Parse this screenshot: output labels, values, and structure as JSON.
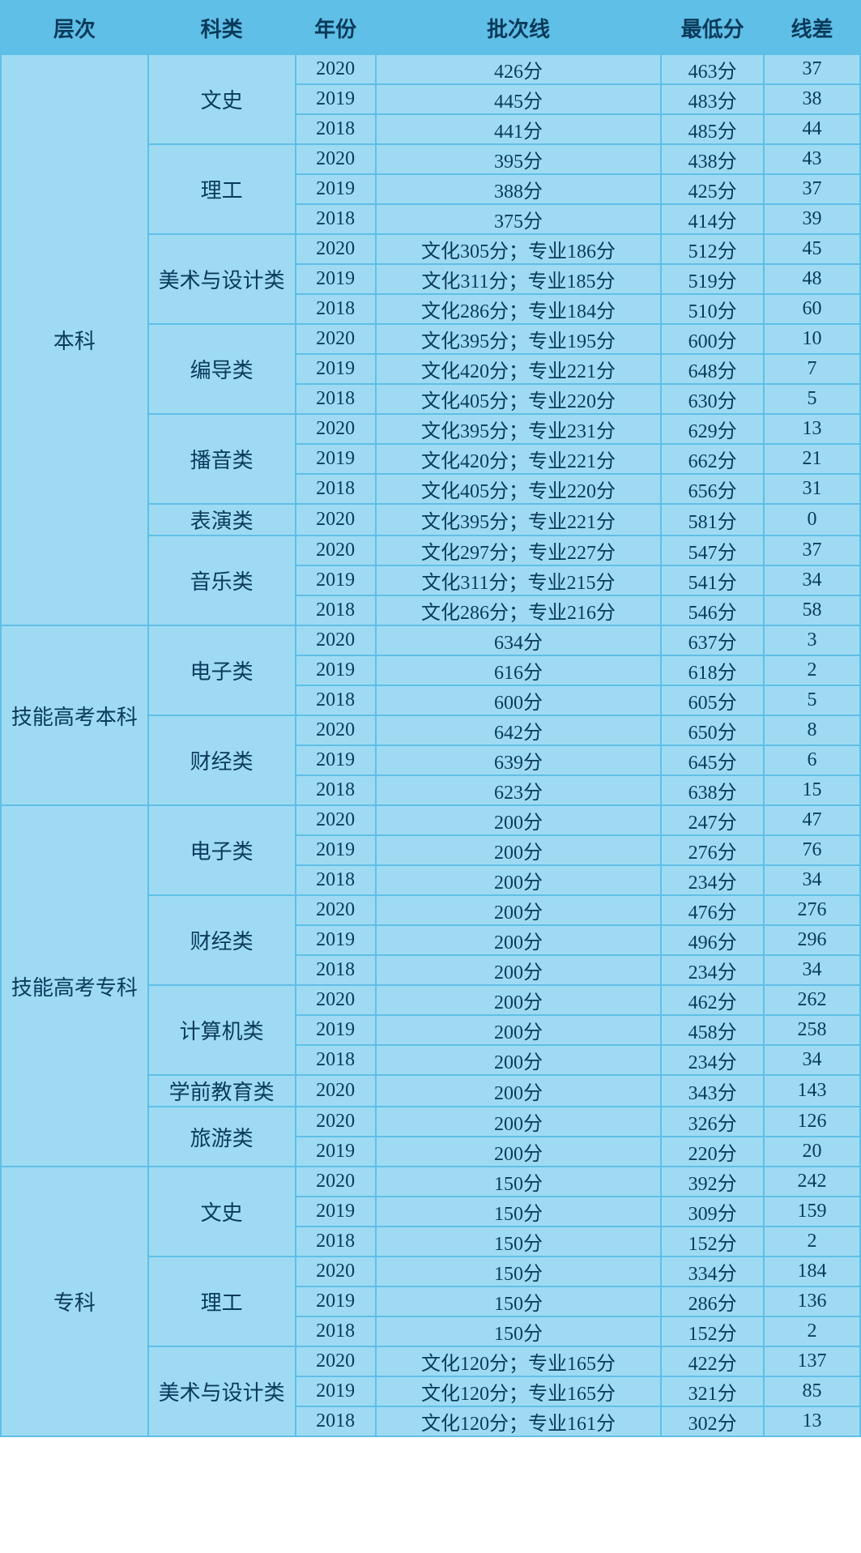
{
  "headers": {
    "level": "层次",
    "subject": "科类",
    "year": "年份",
    "batch": "批次线",
    "min": "最低分",
    "diff": "线差"
  },
  "colors": {
    "header_bg": "#5fbfe7",
    "cell_bg": "#9edbf3",
    "border": "#5fbfe7",
    "text": "#0a3a5a"
  },
  "levels": [
    {
      "name": "本科",
      "rowspan": 19,
      "subjects": [
        {
          "name": "文史",
          "rowspan": 3,
          "rows": [
            {
              "year": "2020",
              "batch": "426分",
              "min": "463分",
              "diff": "37"
            },
            {
              "year": "2019",
              "batch": "445分",
              "min": "483分",
              "diff": "38"
            },
            {
              "year": "2018",
              "batch": "441分",
              "min": "485分",
              "diff": "44"
            }
          ]
        },
        {
          "name": "理工",
          "rowspan": 3,
          "rows": [
            {
              "year": "2020",
              "batch": "395分",
              "min": "438分",
              "diff": "43"
            },
            {
              "year": "2019",
              "batch": "388分",
              "min": "425分",
              "diff": "37"
            },
            {
              "year": "2018",
              "batch": "375分",
              "min": "414分",
              "diff": "39"
            }
          ]
        },
        {
          "name": "美术与设计类",
          "rowspan": 3,
          "rows": [
            {
              "year": "2020",
              "batch": "文化305分；专业186分",
              "min": "512分",
              "diff": "45"
            },
            {
              "year": "2019",
              "batch": "文化311分；专业185分",
              "min": "519分",
              "diff": "48"
            },
            {
              "year": "2018",
              "batch": "文化286分；专业184分",
              "min": "510分",
              "diff": "60"
            }
          ]
        },
        {
          "name": "编导类",
          "rowspan": 3,
          "rows": [
            {
              "year": "2020",
              "batch": "文化395分；专业195分",
              "min": "600分",
              "diff": "10"
            },
            {
              "year": "2019",
              "batch": "文化420分；专业221分",
              "min": "648分",
              "diff": "7"
            },
            {
              "year": "2018",
              "batch": "文化405分；专业220分",
              "min": "630分",
              "diff": "5"
            }
          ]
        },
        {
          "name": "播音类",
          "rowspan": 3,
          "rows": [
            {
              "year": "2020",
              "batch": "文化395分；专业231分",
              "min": "629分",
              "diff": "13"
            },
            {
              "year": "2019",
              "batch": "文化420分；专业221分",
              "min": "662分",
              "diff": "21"
            },
            {
              "year": "2018",
              "batch": "文化405分；专业220分",
              "min": "656分",
              "diff": "31"
            }
          ]
        },
        {
          "name": "表演类",
          "rowspan": 1,
          "rows": [
            {
              "year": "2020",
              "batch": "文化395分；专业221分",
              "min": "581分",
              "diff": "0"
            }
          ]
        },
        {
          "name": "音乐类",
          "rowspan": 3,
          "rows": [
            {
              "year": "2020",
              "batch": "文化297分；专业227分",
              "min": "547分",
              "diff": "37"
            },
            {
              "year": "2019",
              "batch": "文化311分；专业215分",
              "min": "541分",
              "diff": "34"
            },
            {
              "year": "2018",
              "batch": "文化286分；专业216分",
              "min": "546分",
              "diff": "58"
            }
          ]
        }
      ]
    },
    {
      "name": "技能高考本科",
      "rowspan": 6,
      "subjects": [
        {
          "name": "电子类",
          "rowspan": 3,
          "rows": [
            {
              "year": "2020",
              "batch": "634分",
              "min": "637分",
              "diff": "3"
            },
            {
              "year": "2019",
              "batch": "616分",
              "min": "618分",
              "diff": "2"
            },
            {
              "year": "2018",
              "batch": "600分",
              "min": "605分",
              "diff": "5"
            }
          ]
        },
        {
          "name": "财经类",
          "rowspan": 3,
          "rows": [
            {
              "year": "2020",
              "batch": "642分",
              "min": "650分",
              "diff": "8"
            },
            {
              "year": "2019",
              "batch": "639分",
              "min": "645分",
              "diff": "6"
            },
            {
              "year": "2018",
              "batch": "623分",
              "min": "638分",
              "diff": "15"
            }
          ]
        }
      ]
    },
    {
      "name": "技能高考专科",
      "rowspan": 12,
      "subjects": [
        {
          "name": "电子类",
          "rowspan": 3,
          "rows": [
            {
              "year": "2020",
              "batch": "200分",
              "min": "247分",
              "diff": "47"
            },
            {
              "year": "2019",
              "batch": "200分",
              "min": "276分",
              "diff": "76"
            },
            {
              "year": "2018",
              "batch": "200分",
              "min": "234分",
              "diff": "34"
            }
          ]
        },
        {
          "name": "财经类",
          "rowspan": 3,
          "rows": [
            {
              "year": "2020",
              "batch": "200分",
              "min": "476分",
              "diff": "276"
            },
            {
              "year": "2019",
              "batch": "200分",
              "min": "496分",
              "diff": "296"
            },
            {
              "year": "2018",
              "batch": "200分",
              "min": "234分",
              "diff": "34"
            }
          ]
        },
        {
          "name": "计算机类",
          "rowspan": 3,
          "rows": [
            {
              "year": "2020",
              "batch": "200分",
              "min": "462分",
              "diff": "262"
            },
            {
              "year": "2019",
              "batch": "200分",
              "min": "458分",
              "diff": "258"
            },
            {
              "year": "2018",
              "batch": "200分",
              "min": "234分",
              "diff": "34"
            }
          ]
        },
        {
          "name": "学前教育类",
          "rowspan": 1,
          "rows": [
            {
              "year": "2020",
              "batch": "200分",
              "min": "343分",
              "diff": "143"
            }
          ]
        },
        {
          "name": "旅游类",
          "rowspan": 2,
          "rows": [
            {
              "year": "2020",
              "batch": "200分",
              "min": "326分",
              "diff": "126"
            },
            {
              "year": "2019",
              "batch": "200分",
              "min": "220分",
              "diff": "20"
            }
          ]
        }
      ]
    },
    {
      "name": "专科",
      "rowspan": 9,
      "subjects": [
        {
          "name": "文史",
          "rowspan": 3,
          "rows": [
            {
              "year": "2020",
              "batch": "150分",
              "min": "392分",
              "diff": "242"
            },
            {
              "year": "2019",
              "batch": "150分",
              "min": "309分",
              "diff": "159"
            },
            {
              "year": "2018",
              "batch": "150分",
              "min": "152分",
              "diff": "2"
            }
          ]
        },
        {
          "name": "理工",
          "rowspan": 3,
          "rows": [
            {
              "year": "2020",
              "batch": "150分",
              "min": "334分",
              "diff": "184"
            },
            {
              "year": "2019",
              "batch": "150分",
              "min": "286分",
              "diff": "136"
            },
            {
              "year": "2018",
              "batch": "150分",
              "min": "152分",
              "diff": "2"
            }
          ]
        },
        {
          "name": "美术与设计类",
          "rowspan": 3,
          "rows": [
            {
              "year": "2020",
              "batch": "文化120分；专业165分",
              "min": "422分",
              "diff": "137"
            },
            {
              "year": "2019",
              "batch": "文化120分；专业165分",
              "min": "321分",
              "diff": "85"
            },
            {
              "year": "2018",
              "batch": "文化120分；专业161分",
              "min": "302分",
              "diff": "13"
            }
          ]
        }
      ]
    }
  ]
}
